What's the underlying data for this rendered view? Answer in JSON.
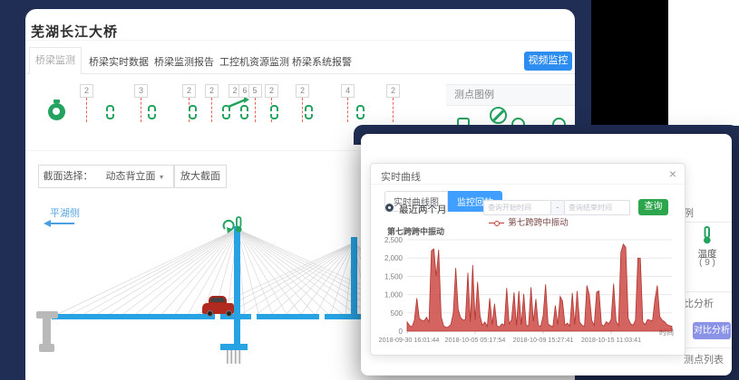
{
  "window": {
    "title": "芜湖长江大桥",
    "tabs": [
      {
        "label": "桥梁监测",
        "active": true
      },
      {
        "label": "桥梁实时数据",
        "active": false
      },
      {
        "label": "桥梁监测报告",
        "active": false
      },
      {
        "label": "工控机资源监测",
        "active": false
      },
      {
        "label": "桥梁系统报警",
        "active": false
      }
    ],
    "video_button": "视频监控",
    "sensor_badges": [
      "2",
      "3",
      "2",
      "2",
      "2",
      "6",
      "5",
      "2",
      "2",
      "4",
      "2"
    ],
    "legend_panel_title": "测点图例",
    "section_label": "截面选择：",
    "section_value": "动态背立面",
    "select_caret": "▼",
    "zoom_section_button": "放大截面",
    "side_label": "平湖侧"
  },
  "dialog": {
    "title": "实时曲线",
    "close": "×",
    "tab_realtime": "实时曲线图",
    "tab_playback": "监控回放",
    "radio_label": "最近两个月",
    "start_placeholder": "查询开始时间",
    "separator": "-",
    "end_placeholder": "查询结束时间",
    "query_button": "查询",
    "legend_label": "第七跨跨中振动"
  },
  "side_strip": {
    "fragment_top": "例",
    "temperature_label": "温度",
    "temperature_count": "( 9 )",
    "fragment_compare": "比分析",
    "compare_button": "对比分析",
    "fragment_list": "测点列表"
  },
  "chart_data": {
    "type": "area",
    "title": "第七跨跨中振动",
    "xlabel": "时间",
    "x_ticks": [
      "2018-09-30 16:01:44",
      "2018-10-05 05:17:54",
      "2018-10-09 15:27:41",
      "2018-10-15 11:03:41"
    ],
    "y_ticks": [
      "2,500",
      "2,000",
      "1,500",
      "1,000",
      "500",
      "0"
    ],
    "ylim": [
      0,
      2500
    ],
    "grid": true,
    "legend_position": "top",
    "color": "#c23531",
    "series": [
      {
        "name": "第七跨跨中振动",
        "values": [
          250,
          150,
          120,
          300,
          900,
          350,
          300,
          280,
          380,
          250,
          2200,
          2250,
          1500,
          2230,
          400,
          150,
          100,
          120,
          180,
          500,
          1730,
          600,
          380,
          300,
          320,
          1600,
          250,
          1810,
          300,
          1350,
          420,
          160,
          250,
          130,
          900,
          180,
          750,
          140,
          120,
          200,
          160,
          1180,
          200,
          320,
          1060,
          150,
          1100,
          170,
          1020,
          160,
          140,
          1200,
          260,
          880,
          160,
          130,
          420,
          1280,
          200,
          150,
          120,
          700,
          180,
          950,
          820,
          160,
          220,
          140,
          1050,
          180,
          1100,
          250,
          160,
          130,
          1250,
          1000,
          300,
          160,
          1070,
          1100,
          180,
          140,
          260,
          200,
          320,
          1300,
          280,
          150,
          2150,
          2380,
          2300,
          350,
          200,
          160,
          300,
          2000,
          1990,
          250,
          180,
          320,
          300,
          280,
          850,
          1250,
          400,
          300,
          260,
          180,
          150,
          130
        ]
      }
    ]
  },
  "colors": {
    "background_navy": "#202e55",
    "accent_blue": "#2d8cf0",
    "dialog_tab_blue": "#409eff",
    "success_green": "#2da54d",
    "sensor_green": "#23a35f",
    "chart_red": "#c23531",
    "deck_blue": "#27a2e2",
    "compare_button_indigo": "#8a93e5"
  }
}
